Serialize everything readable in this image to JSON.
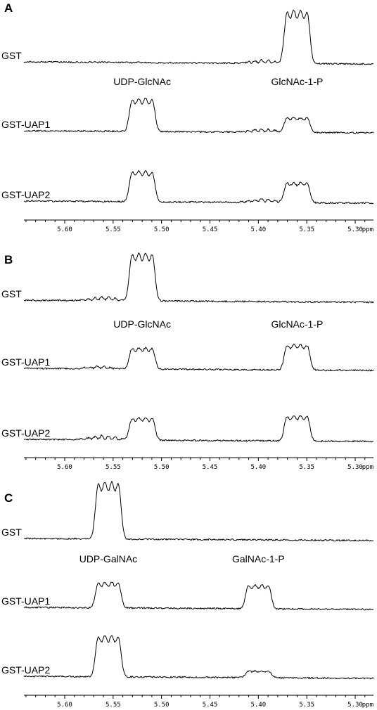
{
  "chart_data": [
    {
      "type": "line",
      "panel": "A",
      "xlabel": "ppm",
      "xlim": [
        5.65,
        5.25
      ],
      "reversed_x": true,
      "xticks": [
        "5.60",
        "5.55",
        "5.50",
        "5.45",
        "5.40",
        "5.35",
        "5.30"
      ],
      "xtick_values": [
        5.6,
        5.55,
        5.5,
        5.45,
        5.4,
        5.35,
        5.3
      ],
      "annotations": [
        {
          "text": "UDP-GlcNAc",
          "x": 5.52
        },
        {
          "text": "GlcNAc-1-P",
          "x": 5.36
        }
      ],
      "series": [
        {
          "name": "GST",
          "peaks": [
            {
              "center": 5.395,
              "height": 0.06,
              "width": 0.005
            },
            {
              "center": 5.36,
              "height": 1.0,
              "width": 0.021
            }
          ]
        },
        {
          "name": "GST-UAP1",
          "peaks": [
            {
              "center": 5.52,
              "height": 0.62,
              "width": 0.021
            },
            {
              "center": 5.395,
              "height": 0.06,
              "width": 0.005
            },
            {
              "center": 5.36,
              "height": 0.28,
              "width": 0.021
            }
          ]
        },
        {
          "name": "GST-UAP2",
          "peaks": [
            {
              "center": 5.52,
              "height": 0.58,
              "width": 0.021
            },
            {
              "center": 5.395,
              "height": 0.07,
              "width": 0.005
            },
            {
              "center": 5.36,
              "height": 0.38,
              "width": 0.021
            }
          ]
        }
      ]
    },
    {
      "type": "line",
      "panel": "B",
      "xlabel": "ppm",
      "xlim": [
        5.65,
        5.25
      ],
      "reversed_x": true,
      "xticks": [
        "5.60",
        "5.55",
        "5.50",
        "5.45",
        "5.40",
        "5.35",
        "5.30"
      ],
      "xtick_values": [
        5.6,
        5.55,
        5.5,
        5.45,
        5.4,
        5.35,
        5.3
      ],
      "annotations": [
        {
          "text": "UDP-GlcNAc",
          "x": 5.52
        },
        {
          "text": "GlcNAc-1-P",
          "x": 5.36
        }
      ],
      "series": [
        {
          "name": "GST",
          "peaks": [
            {
              "center": 5.56,
              "height": 0.07,
              "width": 0.005
            },
            {
              "center": 5.52,
              "height": 0.9,
              "width": 0.021
            }
          ]
        },
        {
          "name": "GST-UAP1",
          "peaks": [
            {
              "center": 5.565,
              "height": 0.05,
              "width": 0.005
            },
            {
              "center": 5.52,
              "height": 0.4,
              "width": 0.021
            },
            {
              "center": 5.36,
              "height": 0.48,
              "width": 0.021
            }
          ]
        },
        {
          "name": "GST-UAP2",
          "peaks": [
            {
              "center": 5.56,
              "height": 0.08,
              "width": 0.005
            },
            {
              "center": 5.52,
              "height": 0.42,
              "width": 0.021
            },
            {
              "center": 5.36,
              "height": 0.48,
              "width": 0.021
            }
          ]
        }
      ]
    },
    {
      "type": "line",
      "panel": "C",
      "xlabel": "ppm",
      "xlim": [
        5.65,
        5.25
      ],
      "reversed_x": true,
      "xticks": [
        "5.60",
        "5.55",
        "5.50",
        "5.45",
        "5.40",
        "5.35",
        "5.30"
      ],
      "xtick_values": [
        5.6,
        5.55,
        5.5,
        5.45,
        5.4,
        5.35,
        5.3
      ],
      "annotations": [
        {
          "text": "UDP-GalNAc",
          "x": 5.555
        },
        {
          "text": "GalNAc-1-P",
          "x": 5.4
        }
      ],
      "series": [
        {
          "name": "GST",
          "peaks": [
            {
              "center": 5.555,
              "height": 1.0,
              "width": 0.021
            }
          ]
        },
        {
          "name": "GST-UAP1",
          "peaks": [
            {
              "center": 5.555,
              "height": 0.45,
              "width": 0.021
            },
            {
              "center": 5.4,
              "height": 0.42,
              "width": 0.021
            }
          ]
        },
        {
          "name": "GST-UAP2",
          "peaks": [
            {
              "center": 5.555,
              "height": 0.72,
              "width": 0.021
            },
            {
              "center": 5.4,
              "height": 0.12,
              "width": 0.021
            }
          ]
        }
      ]
    }
  ]
}
